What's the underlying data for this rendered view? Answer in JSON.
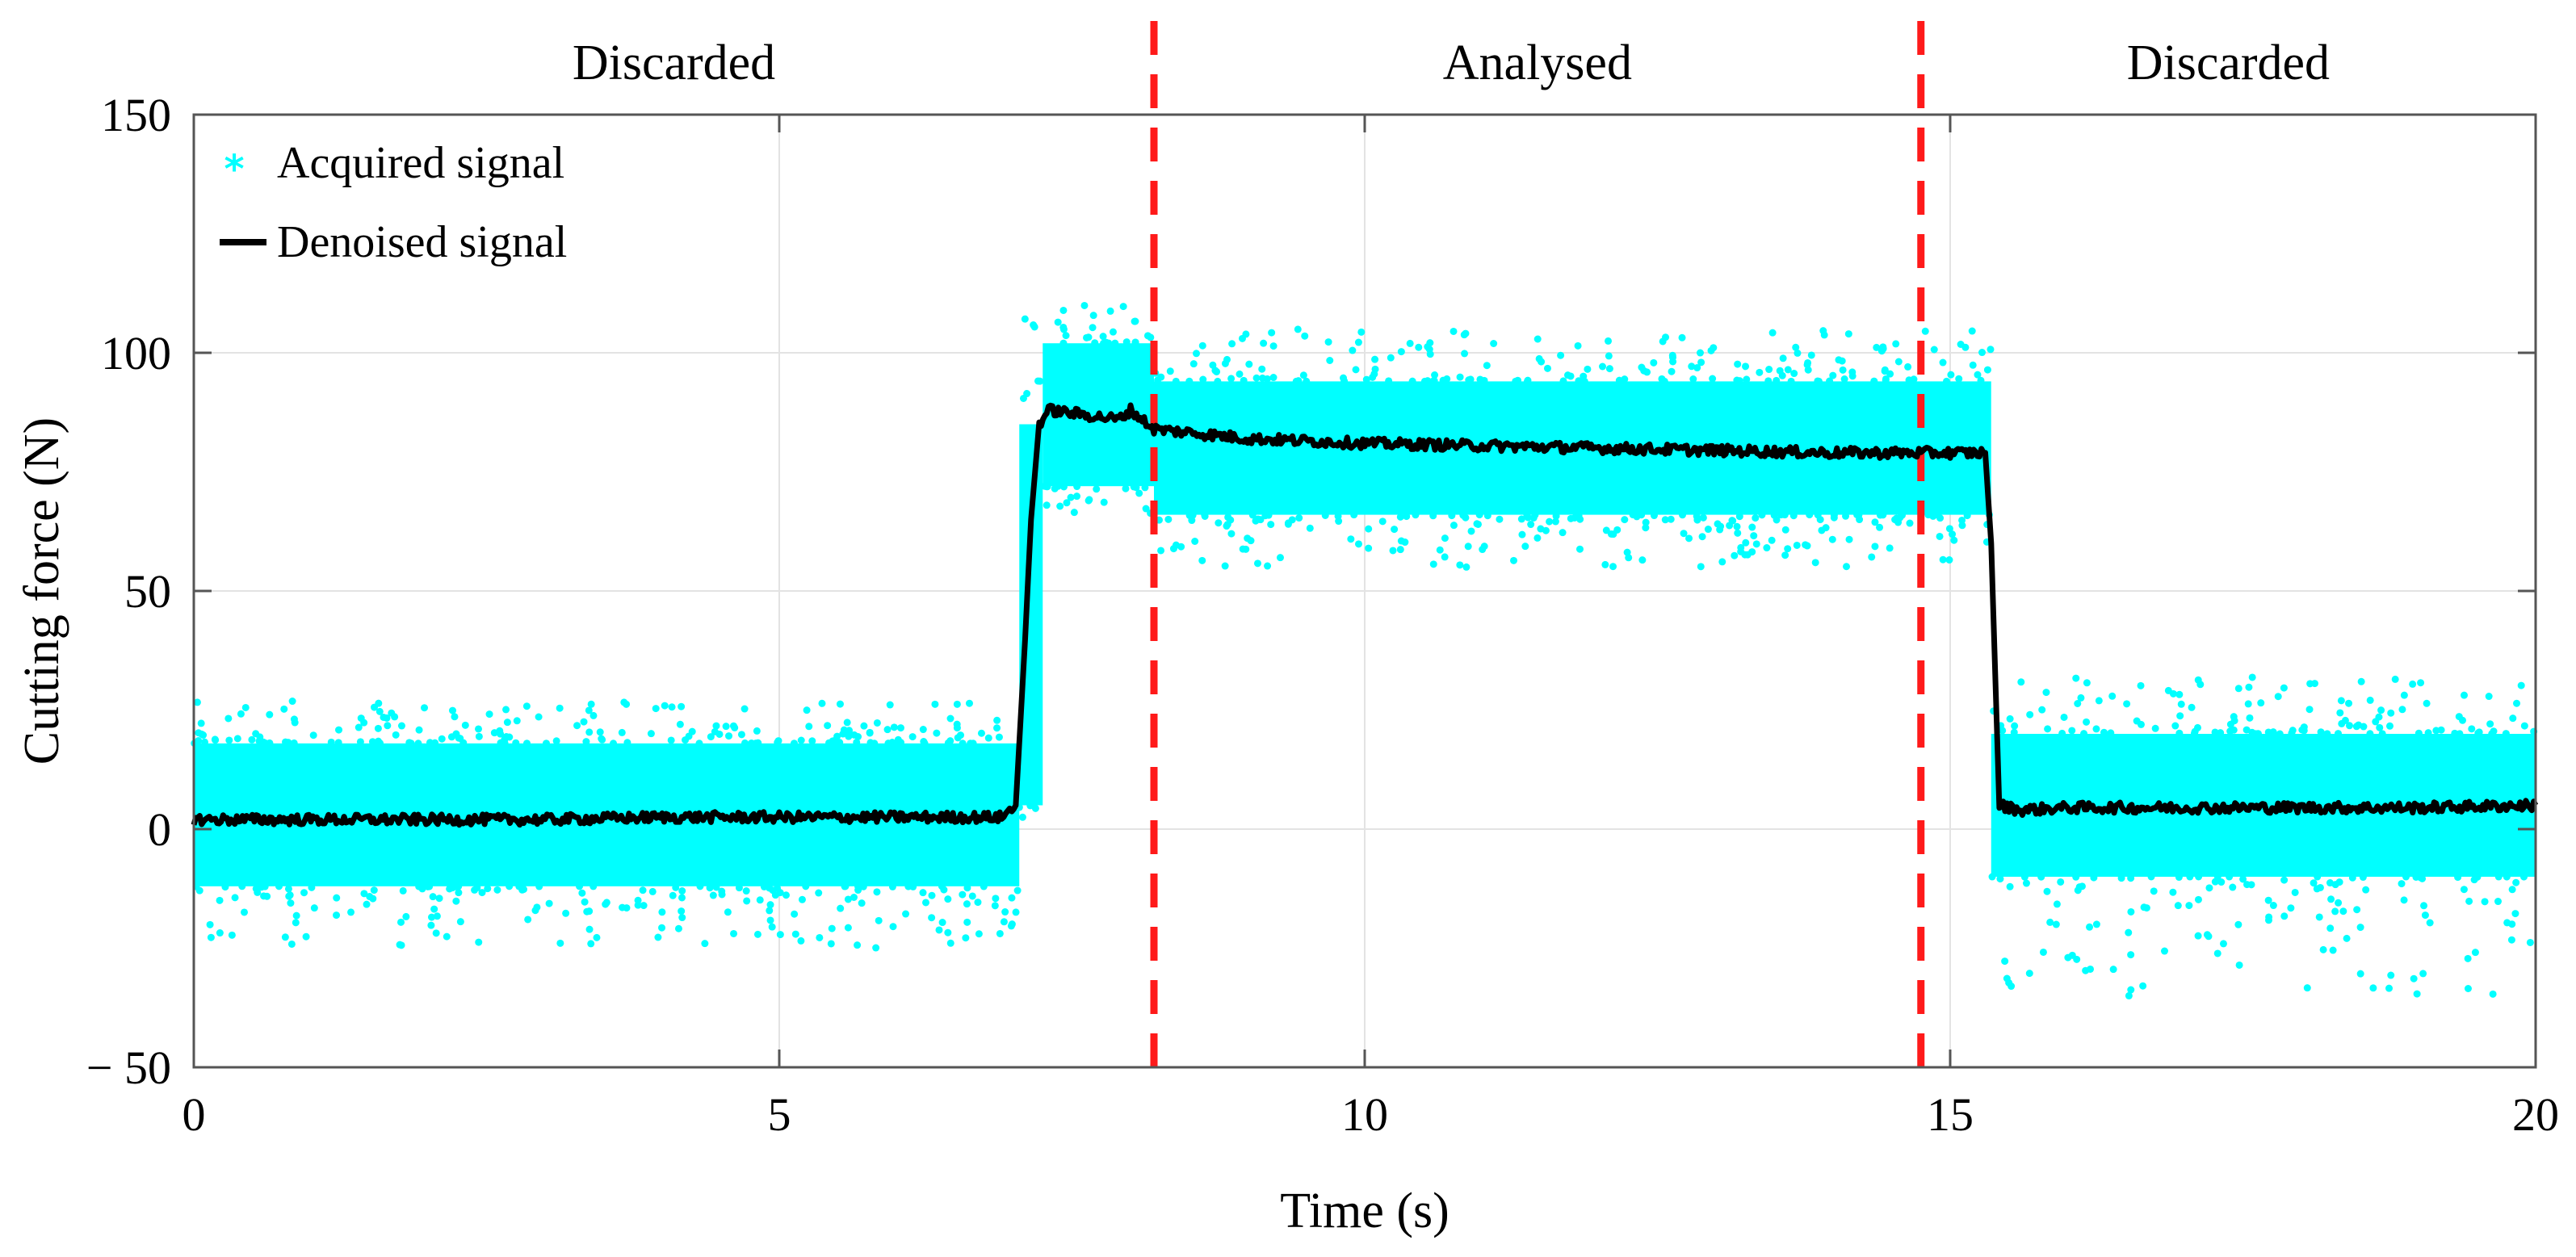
{
  "chart_data": {
    "type": "scatter",
    "title": "",
    "xlabel": "Time (s)",
    "ylabel": "Cutting force (N)",
    "xlim": [
      0,
      20
    ],
    "ylim": [
      -50,
      150
    ],
    "xticks": [
      0,
      5,
      10,
      15,
      20
    ],
    "yticks": [
      -50,
      0,
      50,
      100,
      150
    ],
    "xtick_labels": [
      "0",
      "5",
      "10",
      "15",
      "20"
    ],
    "ytick_labels": [
      "− 50",
      "0",
      "50",
      "100",
      "150"
    ],
    "grid": true,
    "legend_position": "top-left",
    "regions": [
      {
        "label": "Discarded",
        "x_start": 0,
        "x_end": 8.2
      },
      {
        "label": "Analysed",
        "x_start": 8.2,
        "x_end": 14.75
      },
      {
        "label": "Discarded",
        "x_start": 14.75,
        "x_end": 20
      }
    ],
    "boundaries": [
      {
        "x": 8.2,
        "color": "#ff1a1a",
        "style": "dashed"
      },
      {
        "x": 14.75,
        "color": "#ff1a1a",
        "style": "dashed"
      }
    ],
    "series": [
      {
        "name": "Acquired signal",
        "style": "scatter",
        "marker": "*",
        "color": "#00ffff",
        "segments": [
          {
            "x_start": 0,
            "x_end": 7.05,
            "mean": 3,
            "half_range": 15,
            "outlier_min": -25,
            "outlier_max": 27
          },
          {
            "x_start": 7.05,
            "x_end": 7.25,
            "mean": 45,
            "half_range": 40,
            "outlier_min": -5,
            "outlier_max": 110
          },
          {
            "x_start": 7.25,
            "x_end": 8.2,
            "mean": 87,
            "half_range": 15,
            "outlier_min": 66,
            "outlier_max": 110
          },
          {
            "x_start": 8.2,
            "x_end": 15.35,
            "mean": 80,
            "half_range": 14,
            "outlier_min": 55,
            "outlier_max": 105
          },
          {
            "x_start": 15.35,
            "x_end": 20,
            "mean": 5,
            "half_range": 15,
            "outlier_min": -35,
            "outlier_max": 32
          }
        ]
      },
      {
        "name": "Denoised signal",
        "style": "line",
        "color": "#000000",
        "x": [
          0,
          1,
          2,
          3,
          4,
          5,
          6,
          6.9,
          7.02,
          7.1,
          7.15,
          7.22,
          7.3,
          7.6,
          7.9,
          8.0,
          8.2,
          9,
          10,
          11,
          12,
          13,
          14,
          15,
          15.3,
          15.35,
          15.42,
          15.6,
          16,
          17,
          18,
          19,
          20
        ],
        "y": [
          2,
          2,
          2,
          2,
          2.5,
          2.5,
          2.5,
          2.5,
          5,
          40,
          65,
          85,
          88,
          87,
          86,
          88,
          84,
          82,
          81,
          80.5,
          80,
          79.5,
          79,
          79,
          79,
          60,
          5,
          4,
          4.5,
          4.5,
          4.5,
          4.5,
          5
        ]
      }
    ]
  }
}
